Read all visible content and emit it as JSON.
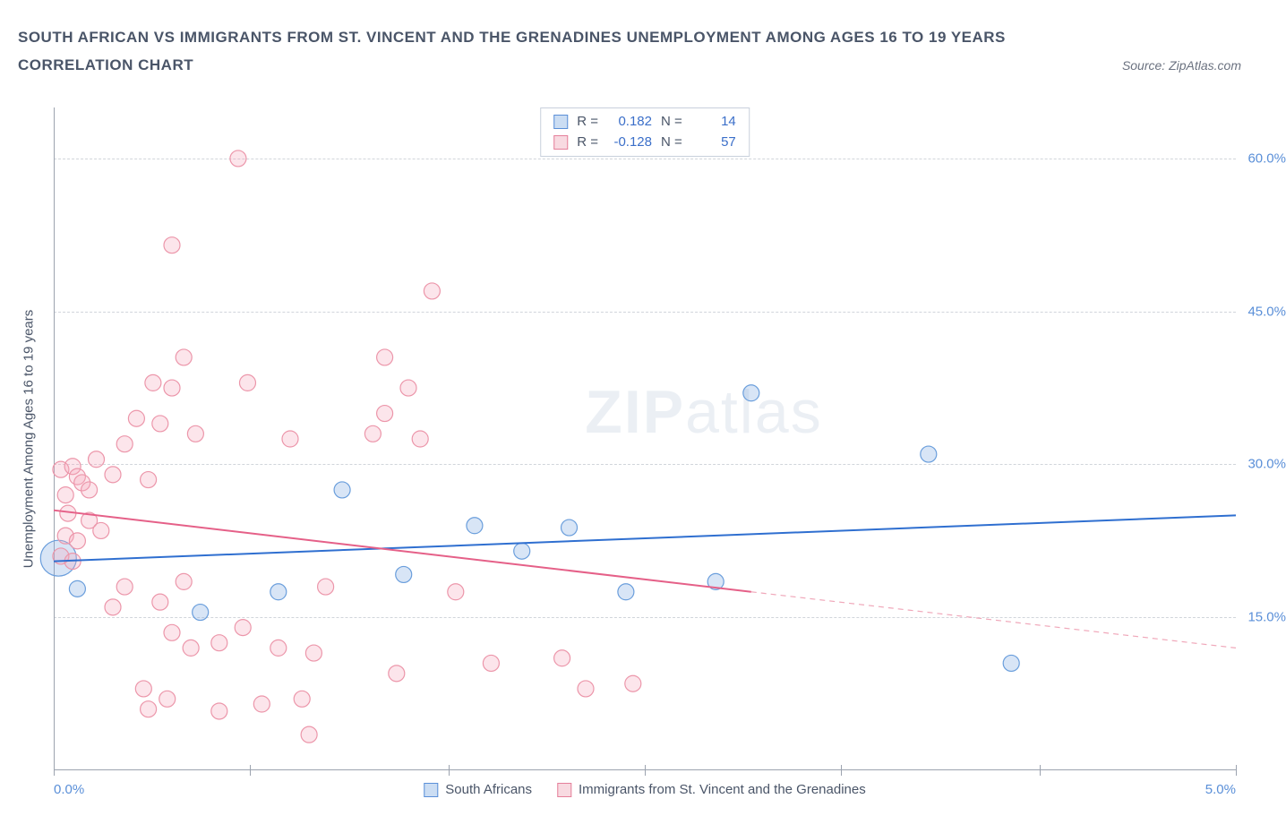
{
  "header": {
    "title": "SOUTH AFRICAN VS IMMIGRANTS FROM ST. VINCENT AND THE GRENADINES UNEMPLOYMENT AMONG AGES 16 TO 19 YEARS",
    "subtitle": "CORRELATION CHART",
    "source": "Source: ZipAtlas.com"
  },
  "chart": {
    "type": "scatter",
    "y_axis_label": "Unemployment Among Ages 16 to 19 years",
    "xlim": [
      0,
      5
    ],
    "ylim": [
      0,
      65
    ],
    "x_ticks_labels": {
      "min": "0.0%",
      "max": "5.0%"
    },
    "y_ticks": [
      15,
      30,
      45,
      60
    ],
    "y_tick_labels": [
      "15.0%",
      "30.0%",
      "45.0%",
      "60.0%"
    ],
    "x_tick_positions": [
      0,
      0.83,
      1.67,
      2.5,
      3.33,
      4.17,
      5.0
    ],
    "grid_color": "#d1d5db",
    "background_color": "#ffffff",
    "marker_radius": 9,
    "marker_stroke_width": 1.2,
    "series": [
      {
        "name": "South Africans",
        "color_fill": "rgba(125,170,225,0.30)",
        "color_stroke": "#6a9edc",
        "R": "0.182",
        "N": "14",
        "trend": {
          "x1": 0.0,
          "y1": 20.5,
          "x2": 5.0,
          "y2": 25.0,
          "color": "#2f6fd0",
          "width": 2,
          "dash": ""
        },
        "points": [
          {
            "x": 0.02,
            "y": 20.8,
            "r": 20
          },
          {
            "x": 0.1,
            "y": 17.8
          },
          {
            "x": 0.62,
            "y": 15.5
          },
          {
            "x": 0.95,
            "y": 17.5
          },
          {
            "x": 1.22,
            "y": 27.5
          },
          {
            "x": 1.48,
            "y": 19.2
          },
          {
            "x": 1.78,
            "y": 24.0
          },
          {
            "x": 1.98,
            "y": 21.5
          },
          {
            "x": 2.18,
            "y": 23.8
          },
          {
            "x": 2.42,
            "y": 17.5
          },
          {
            "x": 2.8,
            "y": 18.5
          },
          {
            "x": 2.95,
            "y": 37.0
          },
          {
            "x": 3.7,
            "y": 31.0
          },
          {
            "x": 4.05,
            "y": 10.5
          }
        ]
      },
      {
        "name": "Immigrants from St. Vincent and the Grenadines",
        "color_fill": "rgba(244,170,190,0.30)",
        "color_stroke": "#ec96aa",
        "R": "-0.128",
        "N": "57",
        "trend_solid": {
          "x1": 0.0,
          "y1": 25.5,
          "x2": 2.95,
          "y2": 17.5,
          "color": "#e56088",
          "width": 2
        },
        "trend_dashed": {
          "x1": 2.95,
          "y1": 17.5,
          "x2": 5.0,
          "y2": 12.0,
          "color": "#f0a8ba",
          "width": 1.2,
          "dash": "6,5"
        },
        "points": [
          {
            "x": 0.03,
            "y": 21.0
          },
          {
            "x": 0.03,
            "y": 29.5
          },
          {
            "x": 0.05,
            "y": 23.0
          },
          {
            "x": 0.05,
            "y": 27.0
          },
          {
            "x": 0.06,
            "y": 25.2
          },
          {
            "x": 0.08,
            "y": 20.5
          },
          {
            "x": 0.08,
            "y": 29.8
          },
          {
            "x": 0.1,
            "y": 28.8
          },
          {
            "x": 0.1,
            "y": 22.5
          },
          {
            "x": 0.12,
            "y": 28.2
          },
          {
            "x": 0.15,
            "y": 27.5
          },
          {
            "x": 0.15,
            "y": 24.5
          },
          {
            "x": 0.18,
            "y": 30.5
          },
          {
            "x": 0.2,
            "y": 23.5
          },
          {
            "x": 0.25,
            "y": 29.0
          },
          {
            "x": 0.25,
            "y": 16.0
          },
          {
            "x": 0.3,
            "y": 18.0
          },
          {
            "x": 0.3,
            "y": 32.0
          },
          {
            "x": 0.35,
            "y": 34.5
          },
          {
            "x": 0.38,
            "y": 8.0
          },
          {
            "x": 0.4,
            "y": 6.0
          },
          {
            "x": 0.4,
            "y": 28.5
          },
          {
            "x": 0.42,
            "y": 38.0
          },
          {
            "x": 0.45,
            "y": 16.5
          },
          {
            "x": 0.45,
            "y": 34.0
          },
          {
            "x": 0.48,
            "y": 7.0
          },
          {
            "x": 0.5,
            "y": 37.5
          },
          {
            "x": 0.5,
            "y": 13.5
          },
          {
            "x": 0.5,
            "y": 51.5
          },
          {
            "x": 0.55,
            "y": 40.5
          },
          {
            "x": 0.55,
            "y": 18.5
          },
          {
            "x": 0.58,
            "y": 12.0
          },
          {
            "x": 0.6,
            "y": 33.0
          },
          {
            "x": 0.7,
            "y": 5.8
          },
          {
            "x": 0.7,
            "y": 12.5
          },
          {
            "x": 0.78,
            "y": 60.0
          },
          {
            "x": 0.8,
            "y": 14.0
          },
          {
            "x": 0.82,
            "y": 38.0
          },
          {
            "x": 0.88,
            "y": 6.5
          },
          {
            "x": 0.95,
            "y": 12.0
          },
          {
            "x": 1.0,
            "y": 32.5
          },
          {
            "x": 1.05,
            "y": 7.0
          },
          {
            "x": 1.08,
            "y": 3.5
          },
          {
            "x": 1.1,
            "y": 11.5
          },
          {
            "x": 1.15,
            "y": 18.0
          },
          {
            "x": 1.35,
            "y": 33.0
          },
          {
            "x": 1.4,
            "y": 40.5
          },
          {
            "x": 1.4,
            "y": 35.0
          },
          {
            "x": 1.45,
            "y": 9.5
          },
          {
            "x": 1.5,
            "y": 37.5
          },
          {
            "x": 1.55,
            "y": 32.5
          },
          {
            "x": 1.6,
            "y": 47.0
          },
          {
            "x": 1.7,
            "y": 17.5
          },
          {
            "x": 1.85,
            "y": 10.5
          },
          {
            "x": 2.15,
            "y": 11.0
          },
          {
            "x": 2.25,
            "y": 8.0
          },
          {
            "x": 2.45,
            "y": 8.5
          }
        ]
      }
    ],
    "watermark": {
      "zip": "ZIP",
      "atlas": "atlas"
    }
  },
  "legend_stats_labels": {
    "R": "R =",
    "N": "N ="
  },
  "bottom_legend": {
    "series1": "South Africans",
    "series2": "Immigrants from St. Vincent and the Grenadines"
  }
}
